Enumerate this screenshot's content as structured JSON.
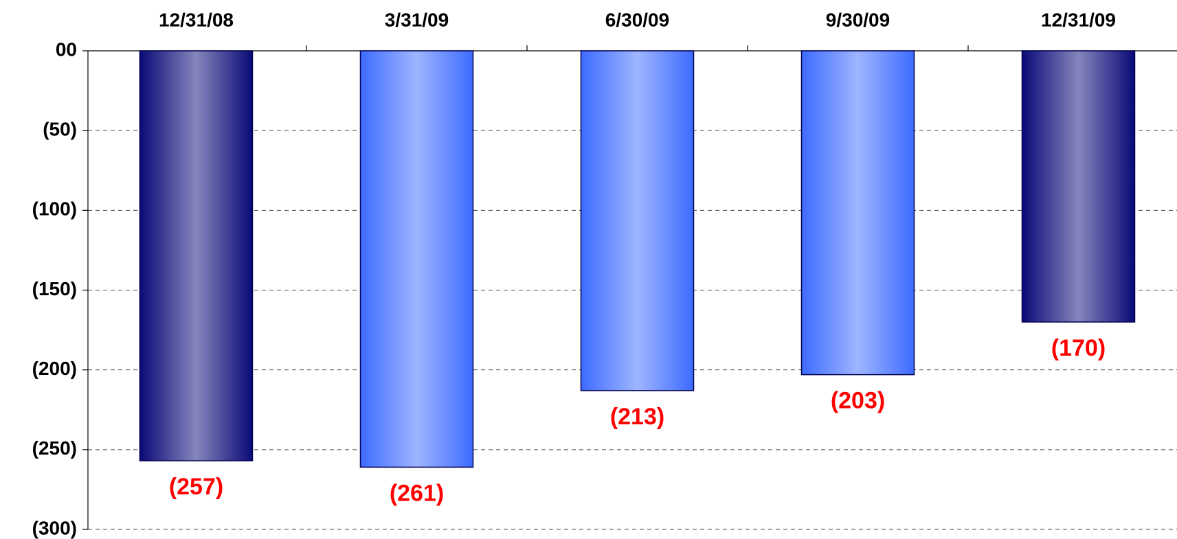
{
  "chart_data": {
    "type": "bar",
    "categories": [
      "12/31/08",
      "3/31/09",
      "6/30/09",
      "9/30/09",
      "12/31/09"
    ],
    "values": [
      -257,
      -261,
      -213,
      -203,
      -170
    ],
    "value_labels": [
      "(257)",
      "(261)",
      "(213)",
      "(203)",
      "(170)"
    ],
    "colors": [
      "#0a0a78",
      "#3d6bff",
      "#3d6bff",
      "#3d6bff",
      "#0a0a78"
    ],
    "ylim": [
      -300,
      0
    ],
    "yticks": [
      {
        "value": 0,
        "label": "00"
      },
      {
        "value": -50,
        "label": "(50)"
      },
      {
        "value": -100,
        "label": "(100)"
      },
      {
        "value": -150,
        "label": "(150)"
      },
      {
        "value": -200,
        "label": "(200)"
      },
      {
        "value": -250,
        "label": "(250)"
      },
      {
        "value": -300,
        "label": "(300)"
      }
    ],
    "grid": true
  }
}
